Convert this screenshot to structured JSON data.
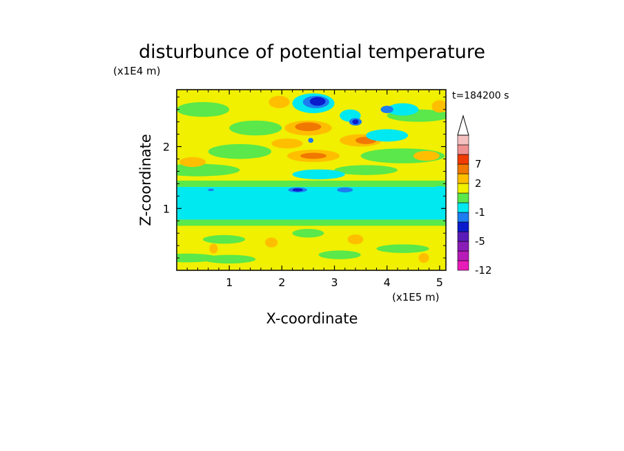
{
  "chart_data": {
    "type": "contour",
    "title": "disturbunce of potential temperature",
    "time_label": "t=184200 s",
    "xlabel": "X-coordinate",
    "ylabel": "Z-coordinate",
    "x_unit_label": "(x1E5 m)",
    "y_unit_label": "(x1E4 m)",
    "xlim": [
      0,
      5.12
    ],
    "ylim": [
      0,
      2.92
    ],
    "x_ticks": [
      {
        "value": 1,
        "label": "1"
      },
      {
        "value": 2,
        "label": "2"
      },
      {
        "value": 3,
        "label": "3"
      },
      {
        "value": 4,
        "label": "4"
      },
      {
        "value": 5,
        "label": "5"
      }
    ],
    "y_ticks": [
      {
        "value": 1,
        "label": "1"
      },
      {
        "value": 2,
        "label": "2"
      }
    ],
    "field_description": [
      {
        "z_range": [
          0,
          0.8
        ],
        "level_range": [
          0,
          2
        ],
        "colors": [
          "yellow",
          "light-green"
        ]
      },
      {
        "z_range": [
          0.8,
          1.35
        ],
        "level_range": [
          -1,
          0
        ],
        "colors": [
          "cyan"
        ]
      },
      {
        "z_range": [
          1.35,
          2.92
        ],
        "level_range": [
          -5,
          5
        ],
        "colors": [
          "yellow",
          "orange",
          "cyan",
          "blue"
        ]
      }
    ],
    "colorbar": {
      "levels_from_bottom": [
        {
          "color": "#e81cb8",
          "label": "-12"
        },
        {
          "color": "#b81cb8",
          "label": ""
        },
        {
          "color": "#8a1cb8",
          "label": ""
        },
        {
          "color": "#5a1cb8",
          "label": "-5"
        },
        {
          "color": "#0a1ccc",
          "label": ""
        },
        {
          "color": "#1c7cf0",
          "label": ""
        },
        {
          "color": "#00e8f0",
          "label": "-1"
        },
        {
          "color": "#5ae84a",
          "label": ""
        },
        {
          "color": "#f0f000",
          "label": ""
        },
        {
          "color": "#ffbf00",
          "label": "2"
        },
        {
          "color": "#f07800",
          "label": ""
        },
        {
          "color": "#f03c00",
          "label": "7"
        },
        {
          "color": "#f09090",
          "label": ""
        },
        {
          "color": "#f4c0c0",
          "label": ""
        }
      ],
      "extend_top": true,
      "labels": [
        {
          "level_index": 0,
          "text": "-12"
        },
        {
          "level_index": 3,
          "text": "-5"
        },
        {
          "level_index": 6,
          "text": "-1"
        },
        {
          "level_index": 9,
          "text": "2"
        },
        {
          "level_index": 11,
          "text": "7"
        }
      ]
    }
  },
  "colors": {
    "yellow": "#f0f000",
    "light_green": "#5ae84a",
    "cyan": "#00e8f0",
    "blue_mid": "#1c7cf0",
    "blue_dark": "#0a1ccc",
    "orange_light": "#ffbf00",
    "orange": "#f07800",
    "red": "#f03c00"
  }
}
